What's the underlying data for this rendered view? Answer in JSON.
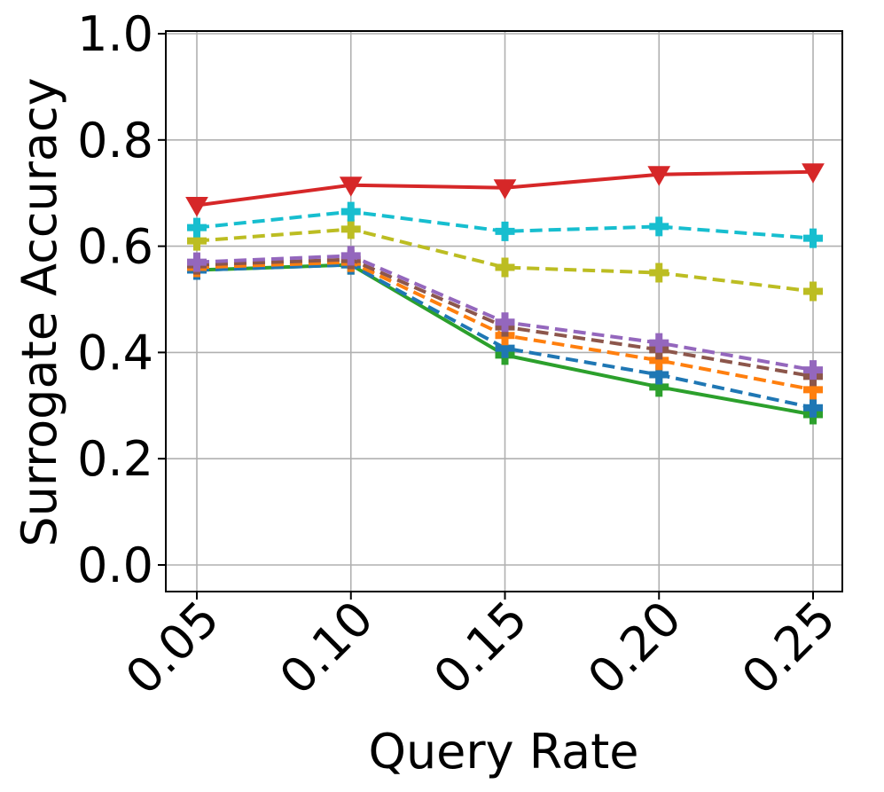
{
  "chart_data": {
    "type": "line",
    "xlabel": "Query Rate",
    "ylabel": "Surrogate Accuracy",
    "x": [
      0.05,
      0.1,
      0.15,
      0.2,
      0.25
    ],
    "x_tick_labels": [
      "0.05",
      "0.10",
      "0.15",
      "0.20",
      "0.25"
    ],
    "y_ticks": [
      0.0,
      0.2,
      0.4,
      0.6,
      0.8,
      1.0
    ],
    "y_tick_labels": [
      "0.0",
      "0.2",
      "0.4",
      "0.6",
      "0.8",
      "1.0"
    ],
    "xlim": [
      0.04,
      0.26
    ],
    "ylim": [
      -0.05,
      1.0
    ],
    "grid": true,
    "series": [
      {
        "color": "#2ca02c",
        "dash": "solid",
        "marker": "plus",
        "values": [
          0.555,
          0.565,
          0.395,
          0.335,
          0.283
        ]
      },
      {
        "color": "#1f77b4",
        "dash": "dashed",
        "marker": "plus",
        "values": [
          0.555,
          0.565,
          0.408,
          0.358,
          0.296
        ]
      },
      {
        "color": "#ff7f0e",
        "dash": "dashed",
        "marker": "plus",
        "values": [
          0.56,
          0.57,
          0.432,
          0.385,
          0.33
        ]
      },
      {
        "color": "#8c564b",
        "dash": "dashed",
        "marker": "plus",
        "values": [
          0.565,
          0.575,
          0.448,
          0.405,
          0.355
        ]
      },
      {
        "color": "#9467bd",
        "dash": "dashed",
        "marker": "plus",
        "values": [
          0.57,
          0.582,
          0.457,
          0.418,
          0.367
        ]
      },
      {
        "color": "#bcbd22",
        "dash": "dashed",
        "marker": "plus",
        "values": [
          0.61,
          0.632,
          0.56,
          0.55,
          0.515
        ]
      },
      {
        "color": "#17becf",
        "dash": "dashed",
        "marker": "plus",
        "values": [
          0.635,
          0.665,
          0.628,
          0.637,
          0.615
        ]
      },
      {
        "color": "#d62728",
        "dash": "solid",
        "marker": "triangle",
        "values": [
          0.677,
          0.715,
          0.71,
          0.735,
          0.74
        ]
      }
    ]
  }
}
